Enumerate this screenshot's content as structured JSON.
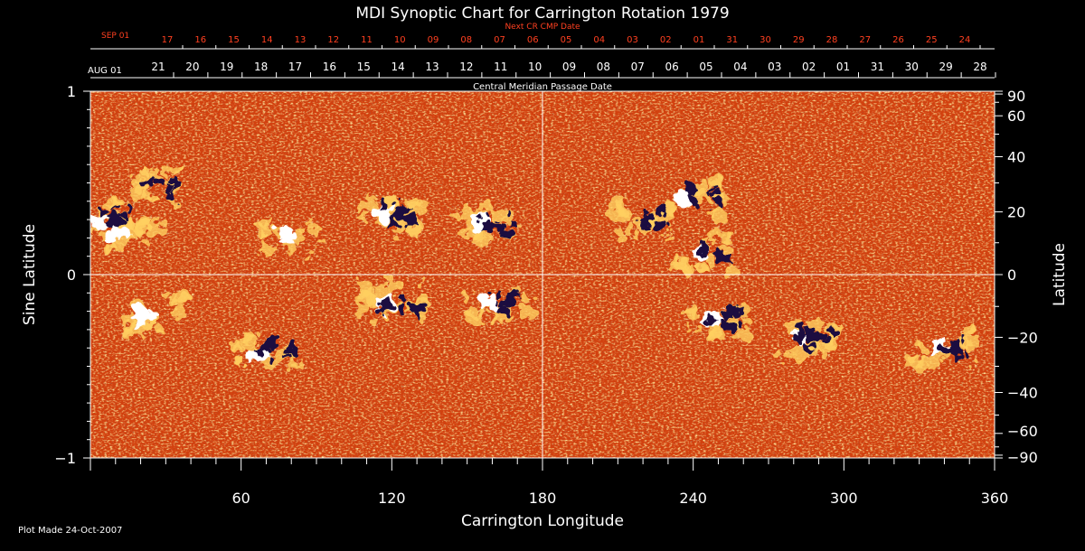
{
  "chart_data": {
    "type": "heatmap",
    "title": "MDI Synoptic Chart for Carrington Rotation 1979",
    "xlabel": "Carrington Longitude",
    "ylabel_left": "Sine Latitude",
    "ylabel_right": "Latitude",
    "top_axis_title": "Central Meridian Passage Date",
    "next_axis_title": "Next CR CMP Date",
    "footer": "Plot Made 24-Oct-2007",
    "xlim": [
      0,
      360
    ],
    "ylim": [
      -1,
      1
    ],
    "x_ticks": [
      "60",
      "120",
      "180",
      "240",
      "300",
      "360"
    ],
    "y_ticks_left": [
      "1",
      "0",
      "−1"
    ],
    "y_ticks_right": [
      "90",
      "60",
      "40",
      "20",
      "0",
      "−20",
      "−40",
      "−60",
      "−90"
    ],
    "latitude_ticks": [
      90,
      60,
      40,
      20,
      0,
      -20,
      -40,
      -60,
      -90
    ],
    "cmp_start_label": "AUG 01",
    "cmp_dates": [
      "21",
      "20",
      "19",
      "18",
      "17",
      "16",
      "15",
      "14",
      "13",
      "12",
      "11",
      "10",
      "09",
      "08",
      "07",
      "06",
      "05",
      "04",
      "03",
      "02",
      "01",
      "31",
      "30",
      "29",
      "28"
    ],
    "next_start_label": "SEP 01",
    "next_dates": [
      "17",
      "16",
      "15",
      "14",
      "13",
      "12",
      "11",
      "10",
      "09",
      "08",
      "07",
      "06",
      "05",
      "04",
      "03",
      "02",
      "01",
      "31",
      "30",
      "29",
      "28",
      "27",
      "26",
      "25",
      "24"
    ],
    "colormap": {
      "background": "#d03a0c",
      "mid": "#ff6a1a",
      "bright": "#ffd060",
      "positive": "#ffffff",
      "negative": "#1a1040"
    },
    "grid_lines": {
      "longitude": 180,
      "sine_latitude": 0
    },
    "active_regions": [
      {
        "lon": 6,
        "sinlat": 0.3,
        "polarity": "mixed"
      },
      {
        "lon": 25,
        "sinlat": 0.48,
        "polarity": "negative"
      },
      {
        "lon": 14,
        "sinlat": 0.23,
        "polarity": "positive"
      },
      {
        "lon": 80,
        "sinlat": 0.2,
        "polarity": "positive"
      },
      {
        "lon": 120,
        "sinlat": 0.34,
        "polarity": "mixed"
      },
      {
        "lon": 158,
        "sinlat": 0.28,
        "polarity": "mixed"
      },
      {
        "lon": 220,
        "sinlat": 0.3,
        "polarity": "negative"
      },
      {
        "lon": 240,
        "sinlat": 0.42,
        "polarity": "mixed"
      },
      {
        "lon": 245,
        "sinlat": 0.12,
        "polarity": "mixed"
      },
      {
        "lon": 120,
        "sinlat": -0.16,
        "polarity": "mixed"
      },
      {
        "lon": 162,
        "sinlat": -0.15,
        "polarity": "mixed"
      },
      {
        "lon": 70,
        "sinlat": -0.42,
        "polarity": "mixed"
      },
      {
        "lon": 250,
        "sinlat": -0.24,
        "polarity": "mixed"
      },
      {
        "lon": 285,
        "sinlat": -0.35,
        "polarity": "mixed"
      },
      {
        "lon": 340,
        "sinlat": -0.4,
        "polarity": "mixed"
      },
      {
        "lon": 25,
        "sinlat": -0.22,
        "polarity": "positive"
      }
    ]
  }
}
